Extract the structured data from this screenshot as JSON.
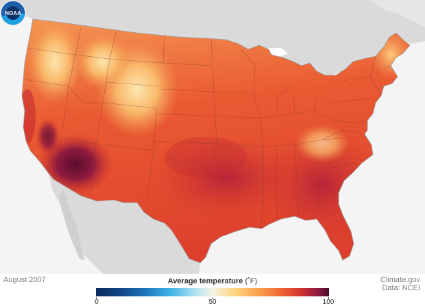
{
  "map": {
    "date": "August 2007",
    "legend": {
      "title": "Average temperature",
      "unit": "(˚F)",
      "tick_labels": [
        "0",
        "50",
        "100"
      ],
      "min": 0,
      "max": 100
    },
    "credit": {
      "source": "Climate.gov",
      "data": "Data: NCEI"
    },
    "logo": {
      "icon": "noaa-logo-icon",
      "text": "NOAA"
    },
    "colors": {
      "background": "#f4f4f4",
      "land_outside": "#d9d9d9",
      "water": "#ffffff",
      "hot": "#8e1a43",
      "warm": "#e5502f",
      "mild": "#fbc573"
    }
  }
}
